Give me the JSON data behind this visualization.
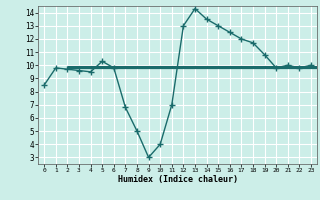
{
  "xlabel": "Humidex (Indice chaleur)",
  "ylabel": "",
  "bg_color": "#cceee8",
  "grid_color": "#ffffff",
  "line_color": "#1a6b6b",
  "xlim": [
    -0.5,
    23.5
  ],
  "ylim": [
    2.5,
    14.5
  ],
  "xticks": [
    0,
    1,
    2,
    3,
    4,
    5,
    6,
    7,
    8,
    9,
    10,
    11,
    12,
    13,
    14,
    15,
    16,
    17,
    18,
    19,
    20,
    21,
    22,
    23
  ],
  "yticks": [
    3,
    4,
    5,
    6,
    7,
    8,
    9,
    10,
    11,
    12,
    13,
    14
  ],
  "x": [
    0,
    1,
    2,
    3,
    4,
    5,
    6,
    7,
    8,
    9,
    10,
    11,
    12,
    13,
    14,
    15,
    16,
    17,
    18,
    19,
    20,
    21,
    22,
    23
  ],
  "y": [
    8.5,
    9.8,
    9.7,
    9.6,
    9.5,
    10.3,
    9.8,
    6.8,
    5.0,
    3.0,
    4.0,
    7.0,
    13.0,
    14.3,
    13.5,
    13.0,
    12.5,
    12.0,
    11.7,
    10.8,
    9.8,
    10.0,
    9.8,
    10.0
  ],
  "hline_y": 9.85,
  "hline_x_start": 2.0,
  "hline_x_end": 23.5,
  "hline_offsets": [
    -0.06,
    -0.03,
    0,
    0.03,
    0.06
  ]
}
